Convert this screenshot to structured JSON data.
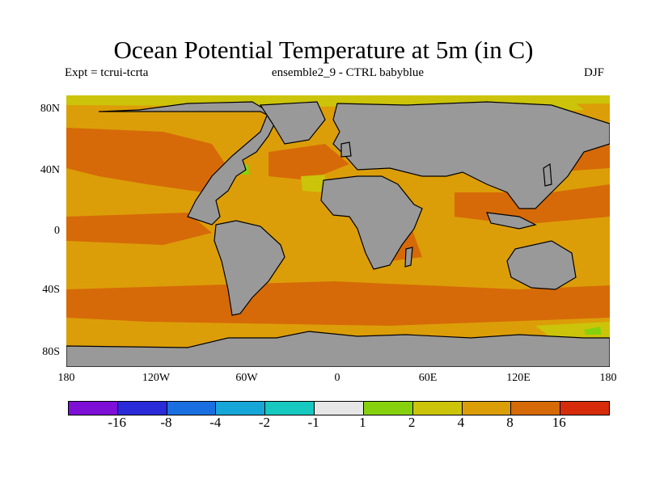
{
  "title": "Ocean Potential Temperature at 5m (in C)",
  "subtitle_left": "Expt = tcrui-tcrta",
  "subtitle_center": "ensemble2_9 - CTRL babyblue",
  "subtitle_right": "DJF",
  "y_axis": {
    "ticks": [
      "80N",
      "40N",
      "0",
      "40S",
      "80S"
    ]
  },
  "x_axis": {
    "ticks": [
      "180",
      "120W",
      "60W",
      "0",
      "60E",
      "120E",
      "180"
    ]
  },
  "colorbar": {
    "colors": [
      "#7d0fd6",
      "#2a2ad8",
      "#1a6fe0",
      "#16a6d8",
      "#17c8c0",
      "#e6e6e6",
      "#86d10e",
      "#ccc40a",
      "#dc9e08",
      "#d66a08",
      "#d62c0b"
    ],
    "labels": [
      "-16",
      "-8",
      "-4",
      "-2",
      "-1",
      "1",
      "2",
      "4",
      "8",
      "16"
    ]
  },
  "map": {
    "land_color": "#999999",
    "ocean_color": "#dc9e08",
    "warm_color": "#d66a08",
    "cool_color": "#ccc40a",
    "green_color": "#86d10e"
  }
}
